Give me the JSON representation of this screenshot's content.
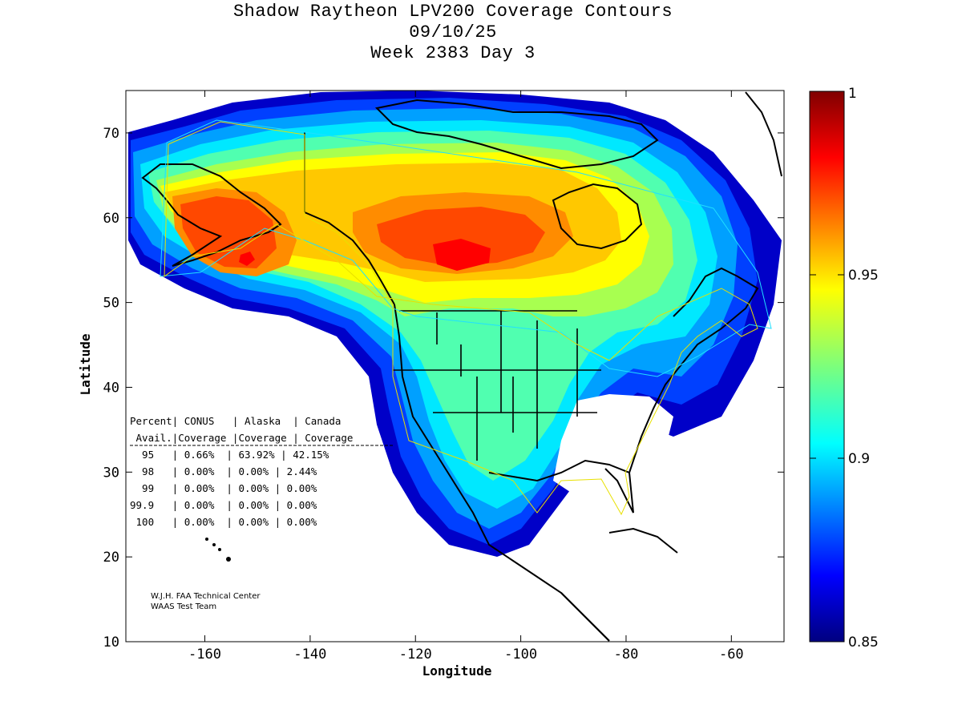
{
  "title": {
    "line1": "Shadow Raytheon LPV200 Coverage Contours",
    "line2": "09/10/25",
    "line3": "Week 2383 Day 3"
  },
  "axes": {
    "xlabel": "Longitude",
    "ylabel": "Latitude",
    "x_ticks": [
      "-160",
      "-140",
      "-120",
      "-100",
      "-80",
      "-60"
    ],
    "y_ticks": [
      "70",
      "60",
      "50",
      "40",
      "30",
      "20",
      "10"
    ],
    "xlim": [
      -175,
      -50
    ],
    "ylim": [
      10,
      75
    ]
  },
  "colorbar": {
    "min_label": "0.85",
    "max_label": "1",
    "tick_labels": [
      "1",
      "0.95",
      "0.9",
      "0.85"
    ],
    "range": [
      0.85,
      1
    ],
    "colormap": "jet"
  },
  "table": {
    "header1": "Percent| CONUS   | Alaska  | Canada",
    "header2": " Avail.|Coverage |Coverage | Coverage",
    "rows": [
      "  95   | 0.66%  | 63.92% | 42.15%",
      "  98   | 0.00%  | 0.00% | 2.44%",
      "  99   | 0.00%  | 0.00% | 0.00%",
      "99.9   | 0.00%  | 0.00% | 0.00%",
      " 100   | 0.00%  | 0.00% | 0.00%"
    ]
  },
  "credits": {
    "line1": "W.J.H. FAA Technical Center",
    "line2": "WAAS Test Team"
  },
  "chart_data": {
    "type": "heatmap",
    "title": "Shadow Raytheon LPV200 Coverage Contours",
    "xlabel": "Longitude",
    "ylabel": "Latitude",
    "xlim": [
      -175,
      -50
    ],
    "ylim": [
      10,
      75
    ],
    "value_range": [
      0.85,
      1
    ],
    "table": {
      "columns": [
        "Percent Avail.",
        "CONUS Coverage",
        "Alaska Coverage",
        "Canada Coverage"
      ],
      "rows": [
        [
          "95",
          "0.66%",
          "63.92%",
          "42.15%"
        ],
        [
          "98",
          "0.00%",
          "0.00%",
          "2.44%"
        ],
        [
          "99",
          "0.00%",
          "0.00%",
          "0.00%"
        ],
        [
          "99.9",
          "0.00%",
          "0.00%",
          "0.00%"
        ],
        [
          "100",
          "0.00%",
          "0.00%",
          "0.00%"
        ]
      ]
    }
  }
}
